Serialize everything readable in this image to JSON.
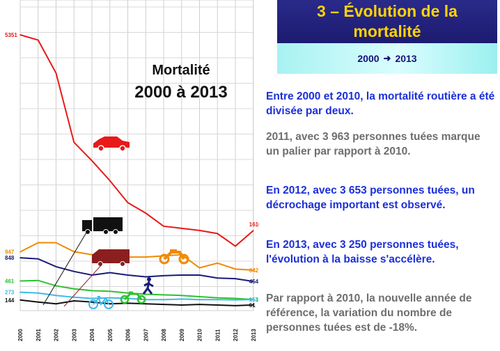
{
  "header": {
    "title_line1": "3 – Évolution de la",
    "title_line2": "mortalité",
    "period_start": "2000",
    "period_end": "2013",
    "arrow_icon": "right-arrow-icon"
  },
  "paragraphs": [
    {
      "text": "Entre 2000 et 2010, la mortalité routière a été divisée par deux.",
      "color": "#1c2fd8"
    },
    {
      "text": "2011, avec 3 963 personnes tuées marque  un palier par rapport à 2010.",
      "color": "#6e6e6e"
    },
    {
      "text": "En 2012, avec 3 653 personnes tuées, un décrochage important est observé.",
      "color": "#1c2fd8"
    },
    {
      "text": "En 2013, avec 3 250 personnes tuées, l'évolution à la baisse s'accélère.",
      "color": "#1c2fd8"
    },
    {
      "text": "Par rapport à 2010, la nouvelle année de référence, la variation du nombre de personnes tuées est de -18%.",
      "color": "#6e6e6e"
    }
  ],
  "chart_data": {
    "type": "line",
    "title_line1": "Mortalité",
    "title_line2": "2000 à 2013",
    "xlabel": "",
    "ylabel": "",
    "categories": [
      "2000",
      "2001",
      "2002",
      "2003",
      "2004",
      "2005",
      "2006",
      "2007",
      "2008",
      "2009",
      "2010",
      "2011",
      "2012",
      "2013"
    ],
    "grid": true,
    "series": [
      {
        "color": "#e81a1a",
        "icon": "car-icon",
        "values": [
          5351,
          5250,
          4620,
          3300,
          2950,
          2570,
          2150,
          1950,
          1700,
          1660,
          1620,
          1560,
          1320,
          1616
        ],
        "start_label": "5351",
        "end_label": "1616"
      },
      {
        "color": "#f08a00",
        "icon": "motorcycle-icon",
        "values": [
          947,
          1100,
          1100,
          950,
          900,
          900,
          860,
          860,
          880,
          900,
          680,
          760,
          660,
          642
        ],
        "start_label": "947",
        "end_label": "642"
      },
      {
        "color": "#1a1a7a",
        "icon": "pedestrian-icon",
        "values": [
          848,
          830,
          700,
          620,
          560,
          600,
          560,
          530,
          550,
          560,
          560,
          510,
          500,
          454
        ],
        "start_label": "848",
        "end_label": "454"
      },
      {
        "color": "#2fc02f",
        "icon": "moped-icon",
        "values": [
          461,
          470,
          380,
          330,
          300,
          290,
          260,
          240,
          230,
          220,
          200,
          180,
          170,
          153
        ],
        "start_label": "461",
        "end_label": "153"
      },
      {
        "color": "#3fb8e8",
        "icon": "bicycle-icon",
        "values": [
          273,
          260,
          220,
          190,
          170,
          180,
          170,
          150,
          150,
          160,
          150,
          150,
          145,
          151
        ],
        "start_label": "273",
        "end_label": "151"
      },
      {
        "color": "#111111",
        "icon": "truck-icon",
        "values": [
          144,
          110,
          80,
          130,
          110,
          80,
          90,
          80,
          70,
          60,
          70,
          60,
          50,
          61
        ],
        "start_label": "144",
        "end_label": "61"
      }
    ],
    "extra_icons": [
      "van-icon"
    ]
  }
}
